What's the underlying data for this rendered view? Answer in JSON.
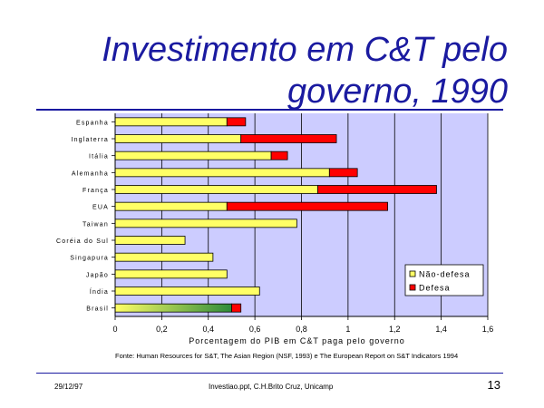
{
  "slide": {
    "title_line1": "Investimento em C&T pelo",
    "title_line2": "governo, 1990",
    "source": "Fonte: Human Resources for S&T, The Asian Region (NSF, 1993) e The European Report on S&T Indicators 1994",
    "footer_date": "29/12/97",
    "footer_file": "Investiao.ppt, C.H.Brito Cruz, Unicamp",
    "page_number": "13"
  },
  "chart_data": {
    "type": "bar",
    "orientation": "horizontal",
    "stacked": true,
    "categories": [
      "Espanha",
      "Inglaterra",
      "Itália",
      "Alemanha",
      "França",
      "EUA",
      "Taiwan",
      "Coréia do Sul",
      "Singapura",
      "Japão",
      "Índia",
      "Brasil"
    ],
    "series": [
      {
        "name": "Não-defesa",
        "color": "#ffff66",
        "values": [
          0.48,
          0.54,
          0.67,
          0.92,
          0.87,
          0.48,
          0.78,
          0.3,
          0.42,
          0.48,
          0.62,
          0.5
        ]
      },
      {
        "name": "Defesa",
        "color": "#ff0000",
        "values": [
          0.08,
          0.41,
          0.07,
          0.12,
          0.51,
          0.69,
          0.0,
          0.0,
          0.0,
          0.0,
          0.0,
          0.04
        ]
      }
    ],
    "xlabel": "Porcentagem do PIB em C&T paga pelo governo",
    "xlim": [
      0,
      1.6
    ],
    "xticks": [
      "0",
      "0,2",
      "0,4",
      "0,6",
      "0,8",
      "1",
      "1,2",
      "1,4",
      "1,6"
    ],
    "grid": true,
    "plot_background": "#ccccff",
    "legend_position": "bottom-right"
  }
}
